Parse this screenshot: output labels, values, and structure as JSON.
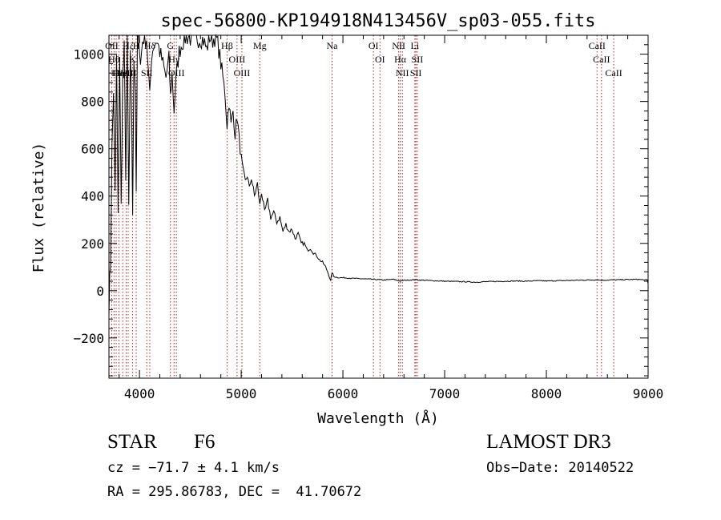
{
  "chart_data": {
    "type": "line",
    "title": "spec-56800-KP194918N413456V_sp03-055.fits",
    "xlabel": "Wavelength (Å)",
    "ylabel": "Flux (relative)",
    "xlim": [
      3700,
      9000
    ],
    "ylim": [
      -370,
      1080
    ],
    "xticks": [
      4000,
      5000,
      6000,
      7000,
      8000,
      9000
    ],
    "xtick_labels": [
      "4000",
      "5000",
      "6000",
      "7000",
      "8000",
      "9000"
    ],
    "yticks": [
      -200,
      0,
      200,
      400,
      600,
      800,
      1000
    ],
    "ytick_labels": [
      "−200",
      "0",
      "200",
      "400",
      "600",
      "800",
      "1000"
    ],
    "series": [
      {
        "name": "flux",
        "x": [
          3700,
          3715,
          3730,
          3745,
          3760,
          3775,
          3790,
          3805,
          3820,
          3835,
          3850,
          3865,
          3880,
          3895,
          3910,
          3925,
          3933,
          3945,
          3960,
          3968,
          3980,
          3995,
          4010,
          4030,
          4050,
          4070,
          4101,
          4120,
          4140,
          4170,
          4200,
          4230,
          4260,
          4290,
          4305,
          4320,
          4340,
          4360,
          4390,
          4420,
          4450,
          4480,
          4520,
          4560,
          4600,
          4630,
          4660,
          4690,
          4720,
          4750,
          4780,
          4800,
          4820,
          4840,
          4861,
          4880,
          4900,
          4920,
          4940,
          4960,
          4980,
          5000,
          5020,
          5040,
          5060,
          5080,
          5100,
          5130,
          5160,
          5183,
          5200,
          5230,
          5260,
          5290,
          5320,
          5350,
          5380,
          5410,
          5440,
          5470,
          5500,
          5530,
          5560,
          5590,
          5620,
          5650,
          5680,
          5710,
          5740,
          5770,
          5800,
          5830,
          5860,
          5880,
          5893,
          5910,
          5950,
          6000,
          6100,
          6200,
          6300,
          6400,
          6500,
          6563,
          6600,
          6700,
          6800,
          6900,
          7000,
          7100,
          7200,
          7300,
          7400,
          7500,
          7600,
          7700,
          7800,
          7900,
          8000,
          8100,
          8200,
          8300,
          8400,
          8500,
          8542,
          8600,
          8700,
          8800,
          8900,
          8950,
          8990,
          9000
        ],
        "values": [
          -60,
          120,
          600,
          850,
          400,
          980,
          300,
          1000,
          350,
          900,
          1020,
          500,
          1040,
          350,
          980,
          700,
          290,
          1000,
          850,
          380,
          1060,
          1080,
          950,
          1060,
          1080,
          1070,
          820,
          1000,
          1040,
          1060,
          1010,
          960,
          900,
          980,
          820,
          920,
          760,
          900,
          1010,
          1050,
          1070,
          1075,
          1060,
          1065,
          1070,
          1060,
          1020,
          1075,
          1060,
          1080,
          1020,
          960,
          900,
          840,
          700,
          800,
          700,
          760,
          660,
          740,
          640,
          560,
          500,
          460,
          490,
          430,
          480,
          400,
          450,
          360,
          420,
          330,
          380,
          310,
          330,
          290,
          310,
          250,
          280,
          250,
          260,
          220,
          240,
          200,
          200,
          170,
          180,
          160,
          150,
          130,
          120,
          100,
          70,
          40,
          80,
          60,
          55,
          55,
          52,
          50,
          48,
          45,
          48,
          40,
          44,
          46,
          44,
          42,
          40,
          39,
          38,
          36,
          38,
          39,
          40,
          41,
          40,
          42,
          41,
          42,
          43,
          44,
          45,
          46,
          44,
          45,
          46,
          47,
          48,
          46,
          45,
          30
        ]
      }
    ],
    "line_markers": [
      {
        "wavelength": 3727,
        "label": "OII"
      },
      {
        "wavelength": 3750,
        "label": "Hθ"
      },
      {
        "wavelength": 3771,
        "label": "Hι"
      },
      {
        "wavelength": 3798,
        "label": "Hη"
      },
      {
        "wavelength": 3835,
        "label": "Hζ"
      },
      {
        "wavelength": 3869,
        "label": "NeIII"
      },
      {
        "wavelength": 3889,
        "label": "Hζ"
      },
      {
        "wavelength": 3933,
        "label": "K"
      },
      {
        "wavelength": 3968,
        "label": "H"
      },
      {
        "wavelength": 4072,
        "label": "SII"
      },
      {
        "wavelength": 4101,
        "label": "Hδ"
      },
      {
        "wavelength": 4304,
        "label": "G"
      },
      {
        "wavelength": 4340,
        "label": "Hγ"
      },
      {
        "wavelength": 4363,
        "label": "OIII"
      },
      {
        "wavelength": 4861,
        "label": "Hβ"
      },
      {
        "wavelength": 4959,
        "label": "OIII"
      },
      {
        "wavelength": 5007,
        "label": "OIII"
      },
      {
        "wavelength": 5183,
        "label": "Mg"
      },
      {
        "wavelength": 5893,
        "label": "Na"
      },
      {
        "wavelength": 6300,
        "label": "OI"
      },
      {
        "wavelength": 6364,
        "label": "OI"
      },
      {
        "wavelength": 6548,
        "label": "NII"
      },
      {
        "wavelength": 6563,
        "label": "Hα"
      },
      {
        "wavelength": 6584,
        "label": "NII"
      },
      {
        "wavelength": 6707,
        "label": "Li"
      },
      {
        "wavelength": 6717,
        "label": "SII"
      },
      {
        "wavelength": 6731,
        "label": "SII"
      },
      {
        "wavelength": 8498,
        "label": "CaII"
      },
      {
        "wavelength": 8542,
        "label": "CaII"
      },
      {
        "wavelength": 8662,
        "label": "CaII"
      }
    ],
    "marker_color": "#b22222",
    "line_color": "#000000"
  },
  "info": {
    "object_class": "STAR",
    "subclass": "F6",
    "cz": "cz = −71.7 ± 4.1 km/s",
    "radec": "RA = 295.86783, DEC =  41.70672",
    "survey": "LAMOST DR3",
    "obs_date": "Obs−Date: 20140522"
  }
}
